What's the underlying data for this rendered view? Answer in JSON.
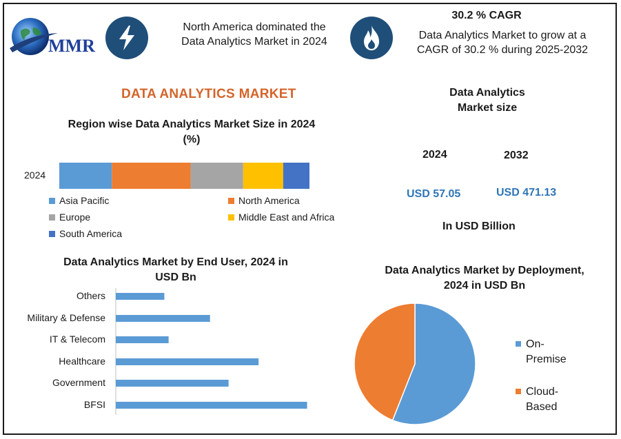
{
  "header": {
    "logo_text": "MMR",
    "left_statement": [
      "North America dominated the",
      "Data Analytics Market in 2024"
    ],
    "cagr_title": "30.2 % CAGR",
    "cagr_text": [
      "Data Analytics Market to grow at a",
      "CAGR of 30.2 % during 2025-2032"
    ],
    "icons": [
      "lightning-icon",
      "flame-icon",
      "globe-logo-icon"
    ]
  },
  "main_title": "DATA ANALYTICS MARKET",
  "market_size": {
    "title": [
      "Data Analytics",
      "Market size"
    ],
    "year1": "2024",
    "year2": "2032",
    "value1": "USD 57.05",
    "value2": "USD 471.13",
    "unit": "In USD Billion"
  },
  "colors": {
    "accent": "#d4642a",
    "navy": "#1f4e79",
    "blue": "#5b9bd5",
    "orange": "#ed7d31",
    "gray": "#a5a5a5",
    "yellow": "#ffc000",
    "darkblue": "#4472c4",
    "value_blue": "#2e75b6"
  },
  "chart_data": [
    {
      "type": "bar",
      "orientation": "horizontal-stacked",
      "title": [
        "Region wise Data Analytics Market Size in 2024",
        "(%)"
      ],
      "categories": [
        "2024"
      ],
      "series": [
        {
          "name": "Asia Pacific",
          "values": [
            21
          ],
          "color": "#5b9bd5"
        },
        {
          "name": "North America",
          "values": [
            31.5
          ],
          "color": "#ed7d31"
        },
        {
          "name": "Europe",
          "values": [
            21
          ],
          "color": "#a5a5a5"
        },
        {
          "name": "Middle East and Africa",
          "values": [
            16
          ],
          "color": "#ffc000"
        },
        {
          "name": "South America",
          "values": [
            10.5
          ],
          "color": "#4472c4"
        }
      ],
      "legend_position": "bottom"
    },
    {
      "type": "bar",
      "orientation": "horizontal",
      "title": [
        "Data Analytics Market by End User, 2024 in",
        "USD Bn"
      ],
      "categories": [
        "Others",
        "Military & Defense",
        "IT & Telecom",
        "Healthcare",
        "Government",
        "BFSI"
      ],
      "values": [
        3.4,
        6.6,
        3.7,
        10.0,
        7.9,
        13.4
      ],
      "xlim": [
        0,
        14
      ],
      "grid": false,
      "color": "#5b9bd5"
    },
    {
      "type": "pie",
      "title": [
        "Data Analytics Market by Deployment,",
        "2024 in USD Bn"
      ],
      "slices": [
        {
          "name": "On-Premise",
          "legend_lines": [
            "On-",
            "Premise"
          ],
          "value": 56,
          "color": "#5b9bd5"
        },
        {
          "name": "Cloud-Based",
          "legend_lines": [
            "Cloud-",
            "Based"
          ],
          "value": 44,
          "color": "#ed7d31"
        }
      ],
      "legend_position": "right"
    }
  ]
}
